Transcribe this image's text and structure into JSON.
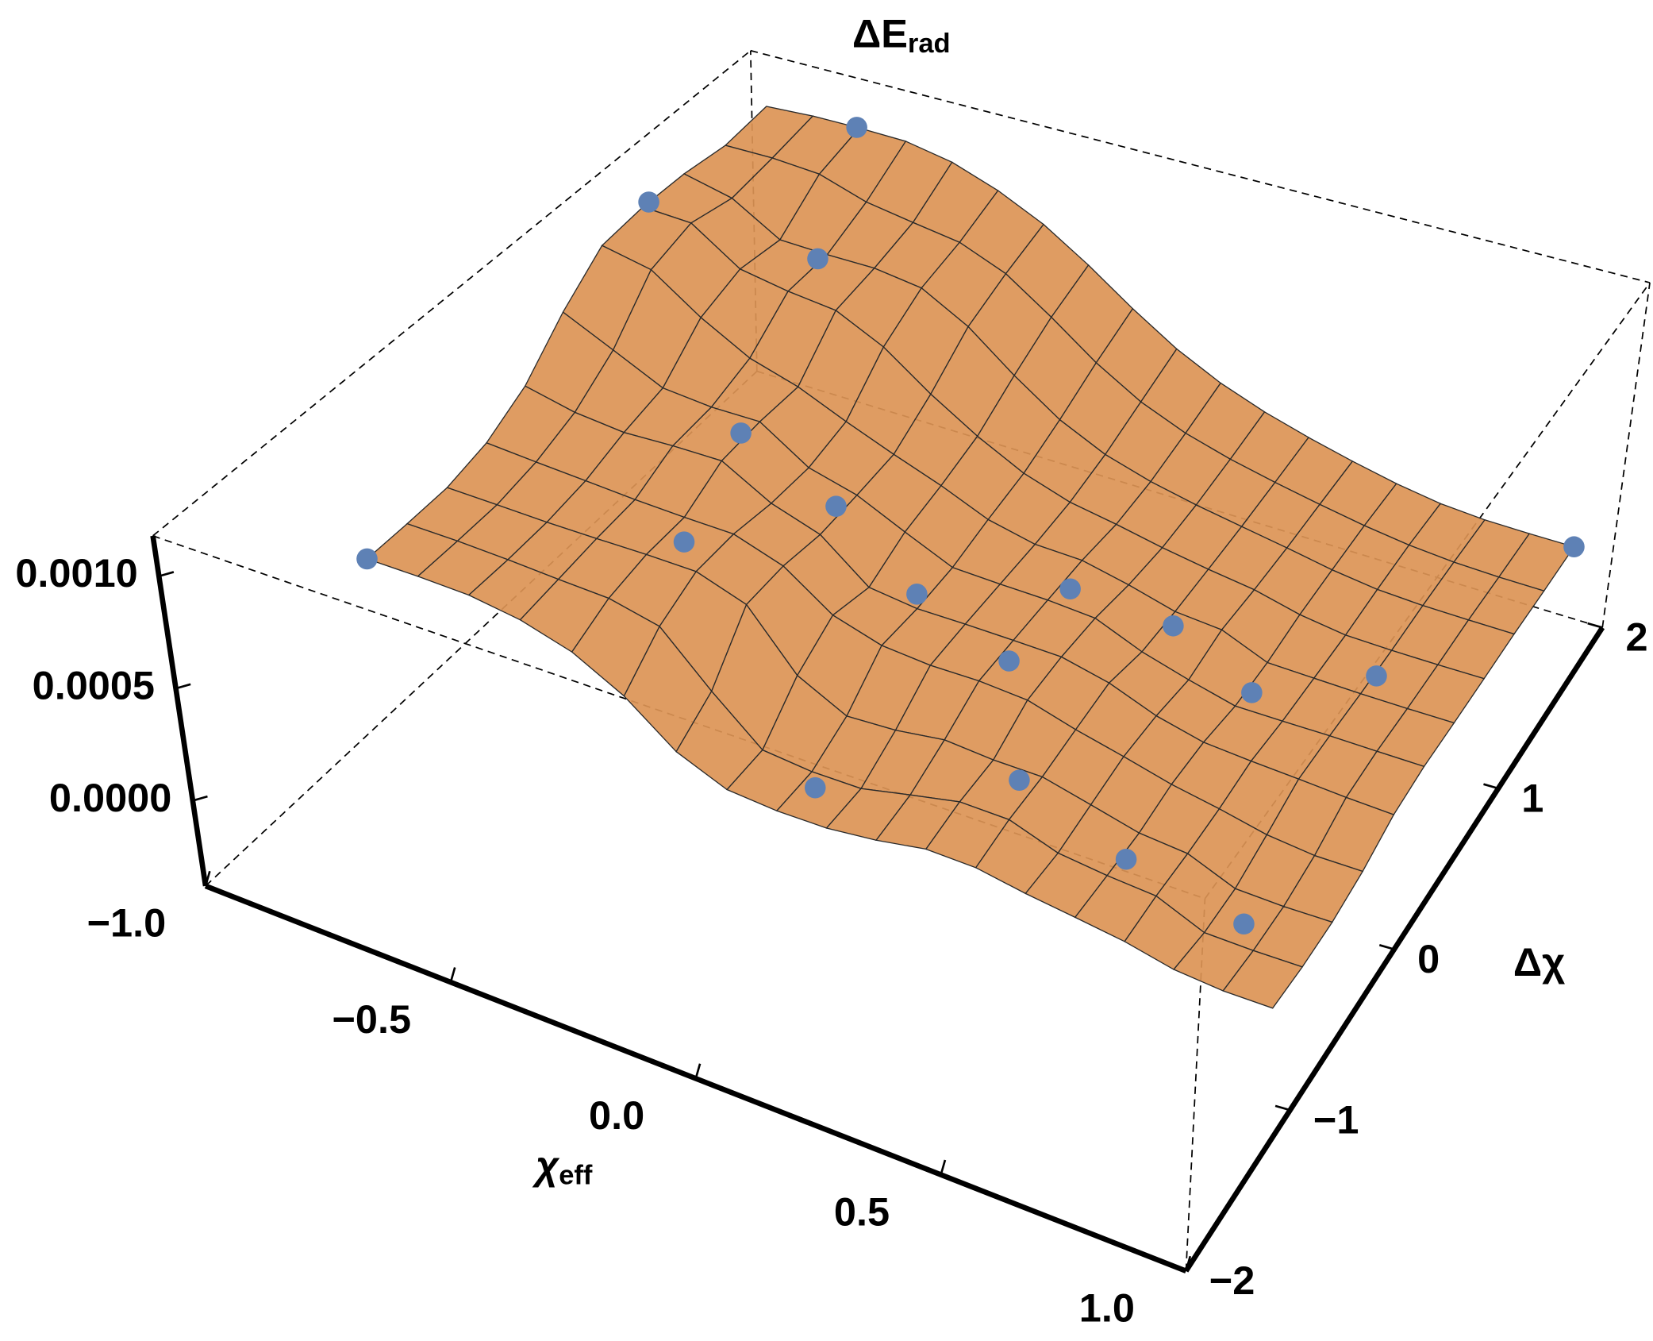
{
  "chart_data": {
    "type": "scatter3d",
    "x_label": "χ",
    "x_label_sub": "eff",
    "y_label": "Δχ",
    "z_label": "ΔE",
    "z_label_sub": "rad",
    "x": [
      -0.9,
      -0.7,
      -0.6,
      0.95,
      -0.5,
      -0.3,
      -0.1,
      0.15,
      0.35,
      0.55,
      0.75,
      -0.9,
      -0.45,
      -0.05,
      0.15,
      0.3,
      0.55,
      0.8
    ],
    "y": [
      1.0,
      1.8,
      1.2,
      1.8,
      0.3,
      0.3,
      0.2,
      0.5,
      0.6,
      0.5,
      0.8,
      -1.0,
      -0.3,
      -0.8,
      0.0,
      -0.5,
      -0.6,
      -0.6
    ],
    "z": [
      0.0011,
      0.0011,
      0.0009,
      0.0001,
      0.0007,
      0.0005,
      0.0003,
      0.0003,
      0.0002,
      0.0001,
      0.0001,
      0.0006,
      0.0006,
      0.0001,
      0.0003,
      0.0002,
      0.0001,
      0.0
    ],
    "xlim": [
      -1,
      1
    ],
    "ylim": [
      -2,
      2
    ],
    "zlim": [
      -0.00038,
      0.00118
    ],
    "xticks": [
      {
        "value": -1,
        "label": "−1.0"
      },
      {
        "value": -0.5,
        "label": "−0.5"
      },
      {
        "value": 0,
        "label": "0.0"
      },
      {
        "value": 0.5,
        "label": "0.5"
      },
      {
        "value": 1,
        "label": "1.0"
      }
    ],
    "yticks": [
      {
        "value": -2,
        "label": "−2"
      },
      {
        "value": -1,
        "label": "−1"
      },
      0,
      1,
      2
    ],
    "zticks": [
      {
        "value": 0,
        "label": "0.0000"
      },
      {
        "value": 0.0005,
        "label": "0.0005"
      },
      {
        "value": 0.001,
        "label": "0.0010"
      }
    ],
    "surface_color": "#dc9455",
    "point_color": "#5e81b5"
  }
}
